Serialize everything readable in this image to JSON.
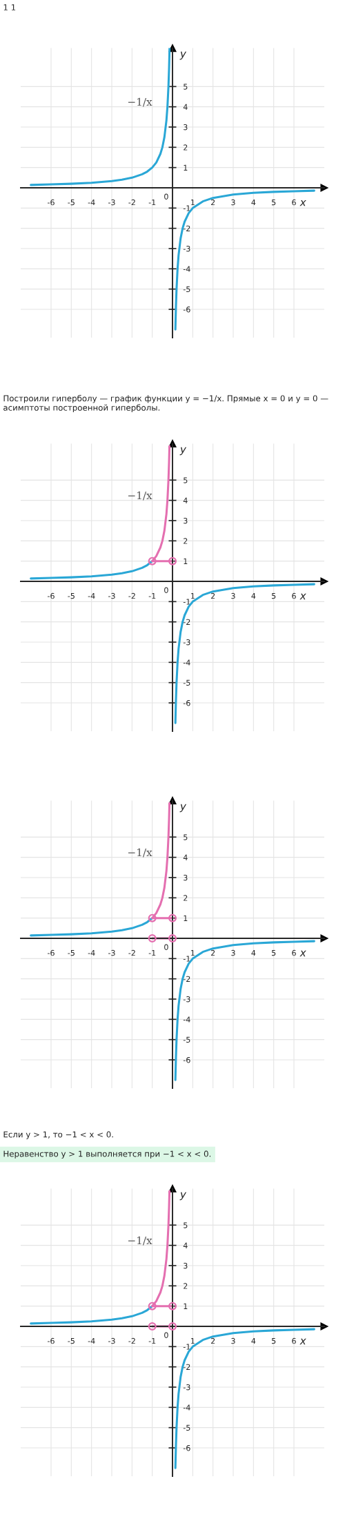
{
  "chart_data": [
    {
      "type": "line",
      "title": "1 1",
      "xlabel": "x",
      "ylabel": "y",
      "xlim": [
        -7.5,
        7.5
      ],
      "ylim": [
        -7.4,
        6.9
      ],
      "grid": true,
      "xticks": [
        -6,
        -5,
        -4,
        -3,
        -2,
        -1,
        1,
        2,
        3,
        4,
        5,
        6
      ],
      "yticks": [
        -6,
        -5,
        -4,
        -3,
        -2,
        -1,
        1,
        2,
        3,
        4,
        5
      ],
      "annotations": [
        "−1/x",
        "0"
      ],
      "series": [
        {
          "color": "#2aa7d6",
          "x": [
            -7,
            -6,
            -5,
            -4,
            -3,
            -2.5,
            -2,
            -1.5,
            -1.25,
            -1,
            -0.8,
            -0.6,
            -0.5,
            -0.4,
            -0.3,
            -0.25,
            -0.2,
            -0.17,
            -0.145
          ],
          "values": [
            0.14,
            0.17,
            0.2,
            0.25,
            0.33,
            0.4,
            0.5,
            0.67,
            0.8,
            1,
            1.25,
            1.67,
            2,
            2.5,
            3.33,
            4,
            5,
            5.88,
            6.9
          ]
        },
        {
          "color": "#2aa7d6",
          "x": [
            0.143,
            0.15,
            0.17,
            0.2,
            0.25,
            0.3,
            0.4,
            0.5,
            0.6,
            0.8,
            1,
            1.5,
            2,
            3,
            4,
            5,
            6,
            7
          ],
          "values": [
            -7,
            -6.67,
            -5.88,
            -5,
            -4,
            -3.33,
            -2.5,
            -2,
            -1.67,
            -1.25,
            -1,
            -0.67,
            -0.5,
            -0.33,
            -0.25,
            -0.2,
            -0.17,
            -0.14
          ]
        }
      ]
    },
    {
      "type": "line",
      "title": "Построили гиперболу — график функции y = −1/x. Прямые x = 0 и y = 0 — асимптоты построенной гиперболы.",
      "xlabel": "x",
      "ylabel": "y",
      "xlim": [
        -7.5,
        7.5
      ],
      "ylim": [
        -7.4,
        6.8
      ],
      "grid": true,
      "xticks": [
        -6,
        -5,
        -4,
        -3,
        -2,
        -1,
        1,
        2,
        3,
        4,
        5,
        6
      ],
      "yticks": [
        -6,
        -5,
        -4,
        -3,
        -2,
        -1,
        1,
        2,
        3,
        4,
        5
      ],
      "annotations": [
        "−1/x",
        "0"
      ],
      "series": [
        {
          "color": "#2aa7d6",
          "x": [
            -7,
            -6,
            -5,
            -4,
            -3,
            -2.5,
            -2,
            -1.5,
            -1.25,
            -1
          ],
          "values": [
            0.14,
            0.17,
            0.2,
            0.25,
            0.33,
            0.4,
            0.5,
            0.67,
            0.8,
            1
          ]
        },
        {
          "color": "#e46fb0",
          "x": [
            -1,
            -0.8,
            -0.6,
            -0.5,
            -0.4,
            -0.3,
            -0.25,
            -0.2,
            -0.17,
            -0.15
          ],
          "values": [
            1,
            1.25,
            1.67,
            2,
            2.5,
            3.33,
            4,
            5,
            5.88,
            6.67
          ]
        },
        {
          "color": "#2aa7d6",
          "x": [
            0.143,
            0.15,
            0.17,
            0.2,
            0.25,
            0.3,
            0.4,
            0.5,
            0.6,
            0.8,
            1,
            1.5,
            2,
            3,
            4,
            5,
            6,
            7
          ],
          "values": [
            -7,
            -6.67,
            -5.88,
            -5,
            -4,
            -3.33,
            -2.5,
            -2,
            -1.67,
            -1.25,
            -1,
            -0.67,
            -0.5,
            -0.33,
            -0.25,
            -0.2,
            -0.17,
            -0.14
          ]
        },
        {
          "color": "#e46fb0",
          "x": [
            -1,
            0
          ],
          "values": [
            1,
            1
          ]
        },
        {
          "type": "scatter",
          "marker": "circle",
          "color": "#e46fb0",
          "x": [
            -1,
            0
          ],
          "values": [
            1,
            1
          ]
        }
      ]
    },
    {
      "type": "line",
      "xlabel": "x",
      "ylabel": "y",
      "xlim": [
        -7.5,
        7.5
      ],
      "ylim": [
        -7.4,
        6.8
      ],
      "grid": true,
      "xticks": [
        -6,
        -5,
        -4,
        -3,
        -2,
        -1,
        1,
        2,
        3,
        4,
        5,
        6
      ],
      "yticks": [
        -6,
        -5,
        -4,
        -3,
        -2,
        -1,
        1,
        2,
        3,
        4,
        5
      ],
      "annotations": [
        "−1/x",
        "0",
        "Если y > 1, то −1 < x < 0.",
        "Неравенство y > 1 выполняется при −1 < x < 0."
      ],
      "series": [
        {
          "color": "#2aa7d6",
          "x": [
            -7,
            -6,
            -5,
            -4,
            -3,
            -2.5,
            -2,
            -1.5,
            -1.25,
            -1
          ],
          "values": [
            0.14,
            0.17,
            0.2,
            0.25,
            0.33,
            0.4,
            0.5,
            0.67,
            0.8,
            1
          ]
        },
        {
          "color": "#e46fb0",
          "x": [
            -1,
            -0.8,
            -0.6,
            -0.5,
            -0.4,
            -0.3,
            -0.25,
            -0.2,
            -0.17,
            -0.15
          ],
          "values": [
            1,
            1.25,
            1.67,
            2,
            2.5,
            3.33,
            4,
            5,
            5.88,
            6.67
          ]
        },
        {
          "color": "#2aa7d6",
          "x": [
            0.143,
            0.15,
            0.17,
            0.2,
            0.25,
            0.3,
            0.4,
            0.5,
            0.6,
            0.8,
            1,
            1.5,
            2,
            3,
            4,
            5,
            6,
            7
          ],
          "values": [
            -7,
            -6.67,
            -5.88,
            -5,
            -4,
            -3.33,
            -2.5,
            -2,
            -1.67,
            -1.25,
            -1,
            -0.67,
            -0.5,
            -0.33,
            -0.25,
            -0.2,
            -0.17,
            -0.14
          ]
        },
        {
          "color": "#e46fb0",
          "x": [
            -1,
            0
          ],
          "values": [
            1,
            1
          ]
        },
        {
          "type": "scatter",
          "marker": "circle",
          "color": "#e46fb0",
          "x": [
            -1,
            0
          ],
          "values": [
            1,
            1
          ]
        },
        {
          "color": "#e46fb0",
          "x": [
            -1,
            0
          ],
          "values": [
            0,
            0
          ]
        },
        {
          "type": "scatter",
          "marker": "circle",
          "color": "#e46fb0",
          "x": [
            -1,
            0
          ],
          "values": [
            0,
            0
          ]
        }
      ]
    },
    {
      "type": "line",
      "xlabel": "x",
      "ylabel": "y",
      "xlim": [
        -7.5,
        7.5
      ],
      "ylim": [
        -7.4,
        6.8
      ],
      "grid": true,
      "xticks": [
        -6,
        -5,
        -4,
        -3,
        -2,
        -1,
        1,
        2,
        3,
        4,
        5,
        6
      ],
      "yticks": [
        -6,
        -5,
        -4,
        -3,
        -2,
        -1,
        1,
        2,
        3,
        4,
        5
      ],
      "annotations": [
        "−1/x",
        "0"
      ],
      "series": [
        {
          "color": "#2aa7d6",
          "x": [
            -7,
            -6,
            -5,
            -4,
            -3,
            -2.5,
            -2,
            -1.5,
            -1.25,
            -1
          ],
          "values": [
            0.14,
            0.17,
            0.2,
            0.25,
            0.33,
            0.4,
            0.5,
            0.67,
            0.8,
            1
          ]
        },
        {
          "color": "#e46fb0",
          "x": [
            -1,
            -0.8,
            -0.6,
            -0.5,
            -0.4,
            -0.3,
            -0.25,
            -0.2,
            -0.17,
            -0.15
          ],
          "values": [
            1,
            1.25,
            1.67,
            2,
            2.5,
            3.33,
            4,
            5,
            5.88,
            6.67
          ]
        },
        {
          "color": "#2aa7d6",
          "x": [
            0.143,
            0.15,
            0.17,
            0.2,
            0.25,
            0.3,
            0.4,
            0.5,
            0.6,
            0.8,
            1,
            1.5,
            2,
            3,
            4,
            5,
            6,
            7
          ],
          "values": [
            -7,
            -6.67,
            -5.88,
            -5,
            -4,
            -3.33,
            -2.5,
            -2,
            -1.67,
            -1.25,
            -1,
            -0.67,
            -0.5,
            -0.33,
            -0.25,
            -0.2,
            -0.17,
            -0.14
          ]
        },
        {
          "color": "#e46fb0",
          "x": [
            -1,
            0
          ],
          "values": [
            1,
            1
          ]
        },
        {
          "type": "scatter",
          "marker": "circle",
          "color": "#e46fb0",
          "x": [
            -1,
            0
          ],
          "values": [
            1,
            1
          ]
        },
        {
          "color": "#e46fb0",
          "x": [
            -1,
            0
          ],
          "values": [
            0,
            0
          ]
        },
        {
          "type": "scatter",
          "marker": "circle",
          "color": "#e46fb0",
          "x": [
            -1,
            0
          ],
          "values": [
            0,
            0
          ]
        }
      ]
    }
  ]
}
